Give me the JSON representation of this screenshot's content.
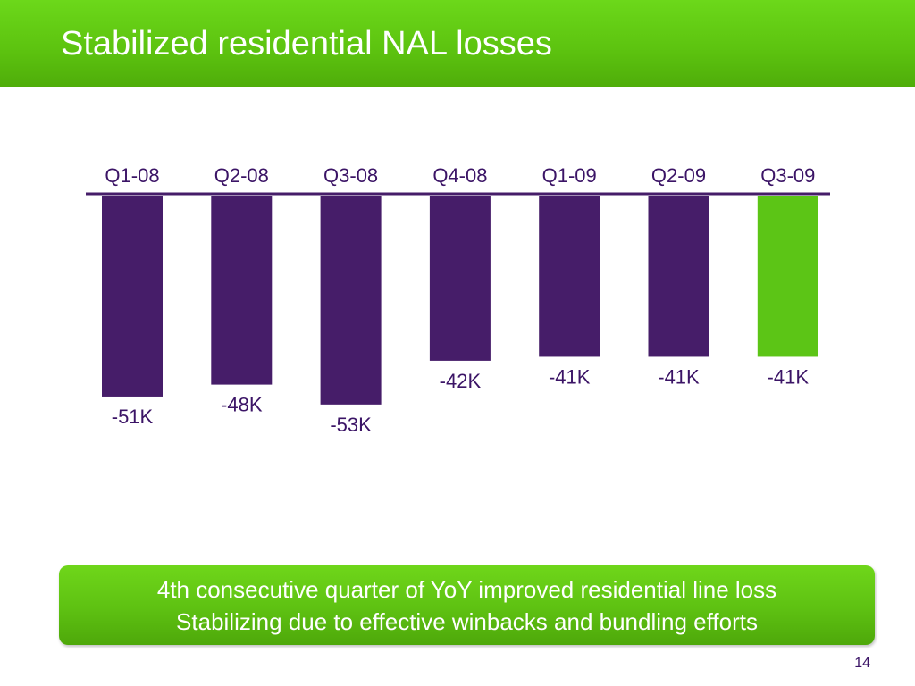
{
  "slide": {
    "title": "Stabilized residential NAL losses",
    "page_number": "14"
  },
  "callout": {
    "line1": "4th consecutive quarter of YoY improved residential line loss",
    "line2": "Stabilizing due to effective winbacks and bundling efforts"
  },
  "colors": {
    "title_bar": "#5cc20f",
    "bar_default": "#461d69",
    "bar_highlight": "#5cc516",
    "text": "#3b1466"
  },
  "chart_data": {
    "type": "bar",
    "categories": [
      "Q1-08",
      "Q2-08",
      "Q3-08",
      "Q4-08",
      "Q1-09",
      "Q2-09",
      "Q3-09"
    ],
    "values": [
      -51,
      -48,
      -53,
      -42,
      -41,
      -41,
      -41
    ],
    "value_labels": [
      "-51K",
      "-48K",
      "-53K",
      "-42K",
      "-41K",
      "-41K",
      "-41K"
    ],
    "unit": "K",
    "highlight_index": 6,
    "ylim": [
      -53,
      0
    ],
    "category_axis_position": "top",
    "grid": false,
    "legend": "none"
  }
}
